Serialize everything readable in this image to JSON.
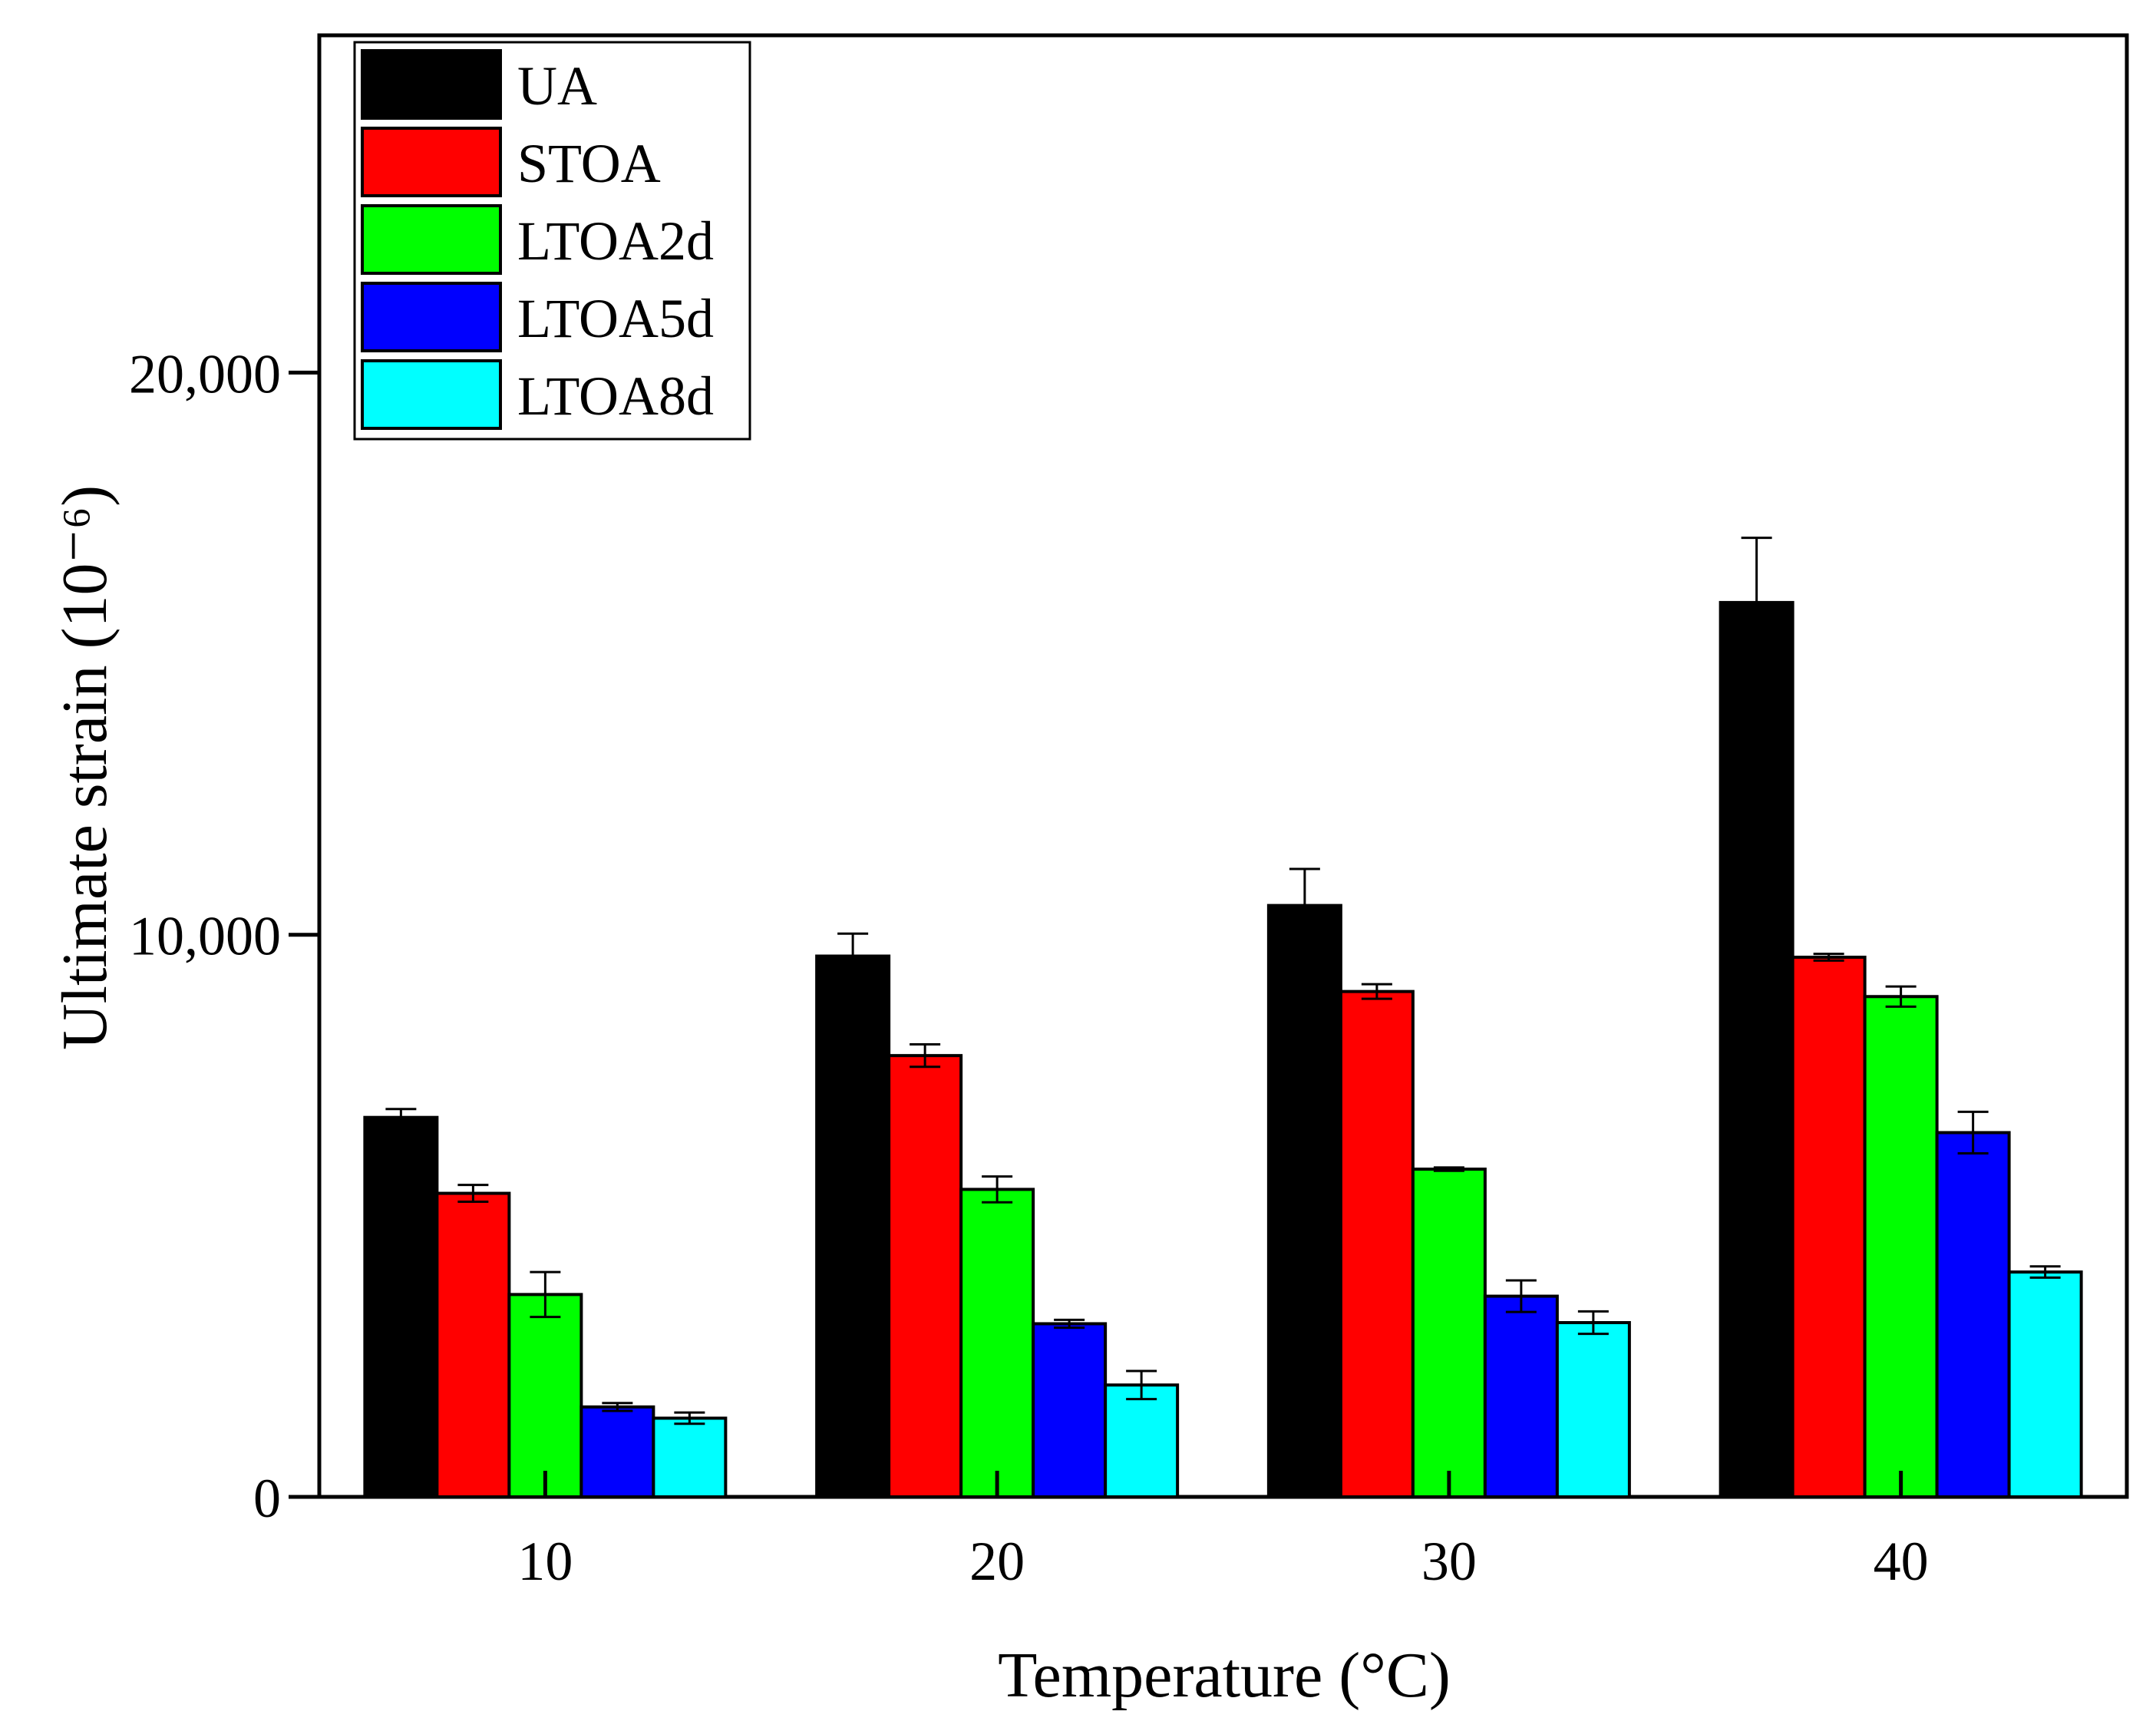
{
  "chart_data": {
    "type": "bar",
    "title": "",
    "xlabel": "Temperature (°C)",
    "ylabel": "Ultimate strain (10⁻⁶)",
    "ylim": [
      0,
      26000
    ],
    "yticks": [
      0,
      10000,
      20000
    ],
    "ytick_labels": [
      "0",
      "10,000",
      "20,000"
    ],
    "categories": [
      "10",
      "20",
      "30",
      "40"
    ],
    "legend_position": "top-left",
    "series": [
      {
        "name": "UA",
        "color": "#000000",
        "values": [
          6750,
          9620,
          10520,
          15910
        ],
        "errors": [
          150,
          400,
          650,
          1150
        ]
      },
      {
        "name": "STOA",
        "color": "#ff0000",
        "values": [
          5400,
          7850,
          8990,
          9600
        ],
        "errors": [
          150,
          200,
          130,
          60
        ]
      },
      {
        "name": "LTOA2d",
        "color": "#00ff00",
        "values": [
          3600,
          5470,
          5830,
          8900
        ],
        "errors": [
          400,
          230,
          30,
          180
        ]
      },
      {
        "name": "LTOA5d",
        "color": "#0000ff",
        "values": [
          1600,
          3080,
          3570,
          6480
        ],
        "errors": [
          70,
          70,
          280,
          370
        ]
      },
      {
        "name": "LTOA8d",
        "color": "#00ffff",
        "values": [
          1400,
          1990,
          3100,
          4000
        ],
        "errors": [
          100,
          250,
          200,
          100
        ]
      }
    ]
  }
}
